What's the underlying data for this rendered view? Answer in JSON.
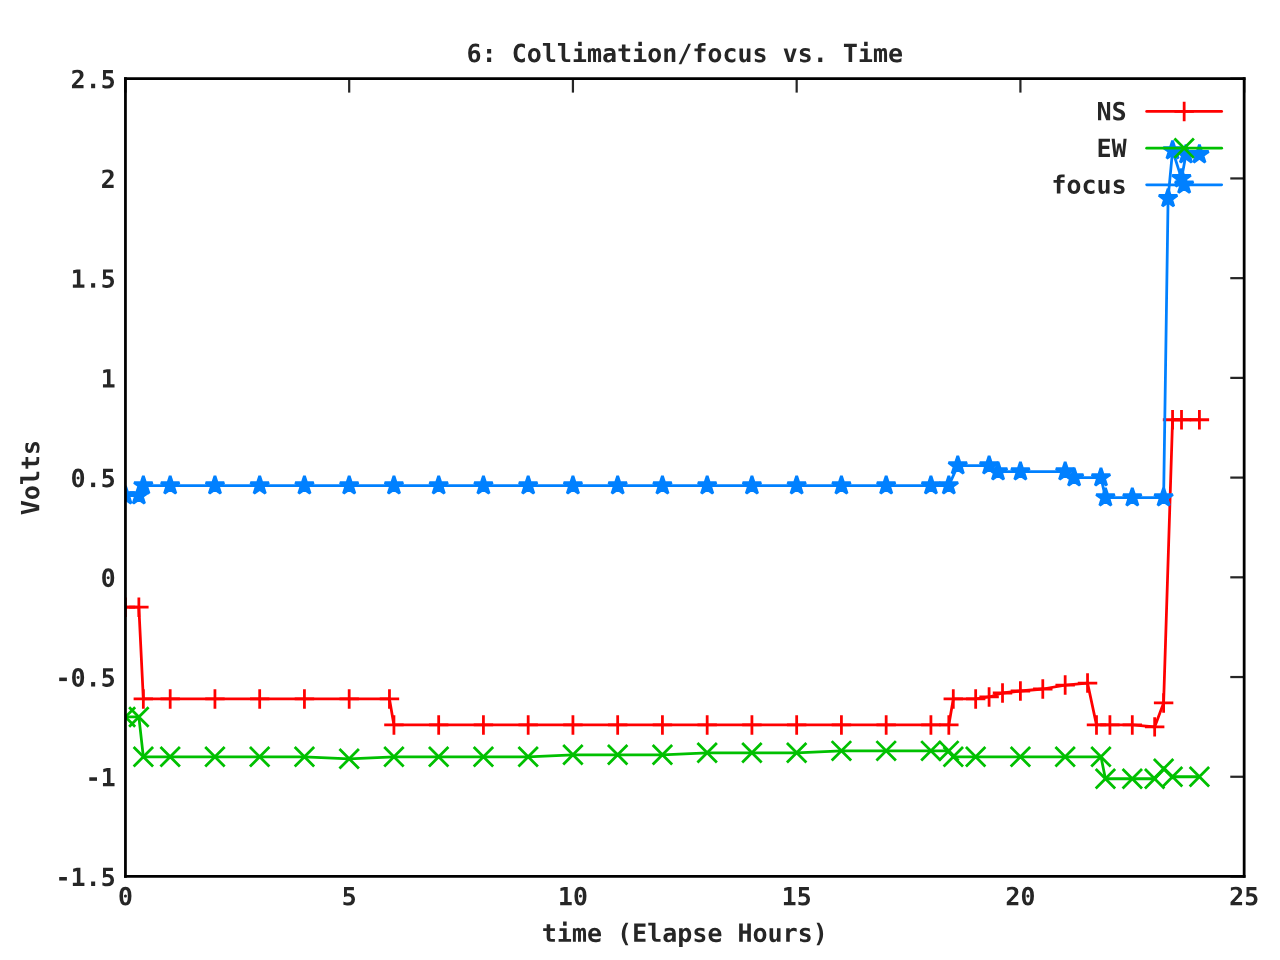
{
  "chart_data": {
    "type": "line",
    "title": "6: Collimation/focus vs. Time",
    "xlabel": "time (Elapse Hours)",
    "ylabel": "Volts",
    "xlim": [
      0,
      25
    ],
    "xticks": [
      0,
      5,
      10,
      15,
      20,
      25
    ],
    "ylim": [
      -1.5,
      2.5
    ],
    "yticks": [
      -1.5,
      -1,
      -0.5,
      0,
      0.5,
      1,
      1.5,
      2,
      2.5
    ],
    "grid": false,
    "legend": "top right",
    "series": [
      {
        "name": "NS",
        "color": "#ff0000",
        "marker": "plus",
        "x": [
          0,
          0.3,
          0.4,
          1,
          2,
          3,
          4,
          5,
          5.9,
          6.0,
          7,
          8,
          9,
          10,
          11,
          12,
          13,
          14,
          15,
          16,
          17,
          18,
          18.4,
          18.5,
          19.0,
          19.3,
          19.6,
          20,
          20.5,
          21,
          21.5,
          21.7,
          22,
          22.5,
          23.0,
          23.2,
          23.4,
          23.6,
          24.0
        ],
        "values": [
          -0.15,
          -0.15,
          -0.61,
          -0.61,
          -0.61,
          -0.61,
          -0.61,
          -0.61,
          -0.61,
          -0.74,
          -0.74,
          -0.74,
          -0.74,
          -0.74,
          -0.74,
          -0.74,
          -0.74,
          -0.74,
          -0.74,
          -0.74,
          -0.74,
          -0.74,
          -0.74,
          -0.61,
          -0.61,
          -0.6,
          -0.58,
          -0.57,
          -0.56,
          -0.54,
          -0.53,
          -0.74,
          -0.74,
          -0.74,
          -0.75,
          -0.63,
          0.79,
          0.79,
          0.79
        ]
      },
      {
        "name": "EW",
        "color": "#00c000",
        "marker": "cross",
        "x": [
          0,
          0.3,
          0.4,
          1,
          2,
          3,
          4,
          5,
          6,
          7,
          8,
          9,
          10,
          11,
          12,
          13,
          14,
          15,
          16,
          17,
          18,
          18.4,
          18.5,
          19,
          20,
          21,
          21.8,
          21.9,
          22.5,
          23.0,
          23.2,
          23.4,
          24
        ],
        "values": [
          -0.7,
          -0.7,
          -0.9,
          -0.9,
          -0.9,
          -0.9,
          -0.9,
          -0.91,
          -0.9,
          -0.9,
          -0.9,
          -0.9,
          -0.89,
          -0.89,
          -0.89,
          -0.88,
          -0.88,
          -0.88,
          -0.87,
          -0.87,
          -0.87,
          -0.87,
          -0.9,
          -0.9,
          -0.9,
          -0.9,
          -0.9,
          -1.01,
          -1.01,
          -1.01,
          -0.96,
          -1.0,
          -1.0
        ]
      },
      {
        "name": "focus",
        "color": "#0080ff",
        "marker": "star",
        "x": [
          0,
          0.3,
          0.4,
          1,
          2,
          3,
          4,
          5,
          6,
          7,
          8,
          9,
          10,
          11,
          12,
          13,
          14,
          15,
          16,
          17,
          18,
          18.4,
          18.6,
          19.3,
          19.5,
          20,
          21,
          21.2,
          21.8,
          21.9,
          22.5,
          23.2,
          23.3,
          23.4,
          23.6,
          23.7,
          24
        ],
        "values": [
          0.41,
          0.41,
          0.46,
          0.46,
          0.46,
          0.46,
          0.46,
          0.46,
          0.46,
          0.46,
          0.46,
          0.46,
          0.46,
          0.46,
          0.46,
          0.46,
          0.46,
          0.46,
          0.46,
          0.46,
          0.46,
          0.46,
          0.56,
          0.56,
          0.53,
          0.53,
          0.53,
          0.5,
          0.5,
          0.4,
          0.4,
          0.4,
          1.9,
          2.14,
          2.0,
          2.12,
          2.12
        ]
      }
    ]
  }
}
